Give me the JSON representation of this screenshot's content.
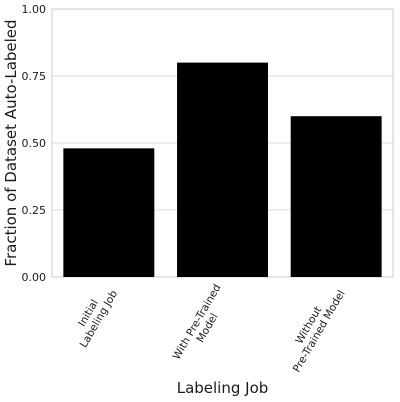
{
  "chart_data": {
    "type": "bar",
    "title": "",
    "xlabel": "Labeling Job",
    "ylabel": "Fraction of Dataset Auto-Labeled",
    "categories": [
      [
        "Initial",
        "Labeling Job"
      ],
      [
        "With Pre-Trained",
        "Model"
      ],
      [
        "Without",
        "Pre-Trained Model"
      ]
    ],
    "values": [
      0.48,
      0.8,
      0.6
    ],
    "ylim": [
      0,
      1.0
    ],
    "yticks": [
      "0.00",
      "0.25",
      "0.50",
      "0.75",
      "1.00"
    ],
    "ytick_values": [
      0,
      0.25,
      0.5,
      0.75,
      1.0
    ],
    "grid": "horizontal",
    "bar_color": "#000000",
    "grid_color": "#dddddd",
    "frame_color": "#cccccc"
  }
}
